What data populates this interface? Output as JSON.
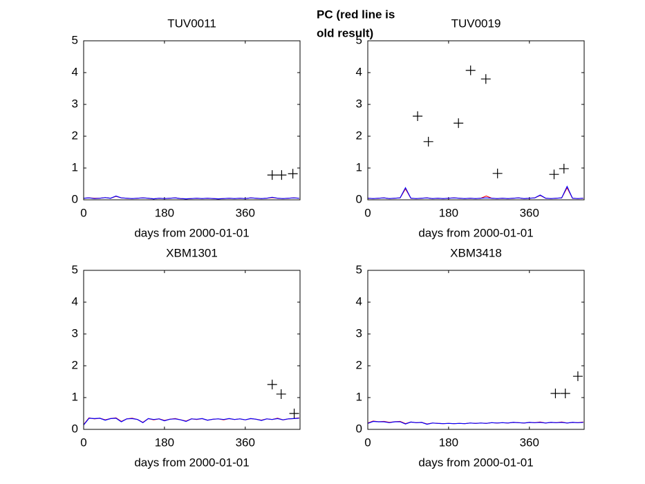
{
  "figure_annotation": [
    "PC (red line is",
    "old result)"
  ],
  "annotation_color": "#ff0000",
  "chart_data": [
    {
      "type": "line",
      "title": "TUV0011",
      "x_label": "days from 2000-01-01",
      "xlim": [
        0,
        482
      ],
      "xticks": [
        0,
        180,
        360
      ],
      "ylim": [
        0,
        5
      ],
      "yticks": [
        0,
        1,
        2,
        3,
        4,
        5
      ],
      "x": [
        0,
        12,
        24,
        36,
        48,
        60,
        72,
        84,
        96,
        108,
        120,
        132,
        144,
        156,
        168,
        180,
        192,
        204,
        216,
        228,
        240,
        252,
        264,
        276,
        288,
        300,
        312,
        324,
        336,
        348,
        360,
        372,
        384,
        396,
        408,
        420,
        432,
        444,
        456,
        468,
        480
      ],
      "series": [
        {
          "style": "line",
          "color": "#ff0000",
          "values": [
            0.05,
            0.06,
            0.05,
            0.05,
            0.07,
            0.05,
            0.11,
            0.06,
            0.05,
            0.04,
            0.05,
            0.06,
            0.05,
            0.03,
            0.05,
            0.04,
            0.05,
            0.06,
            0.04,
            0.03,
            0.04,
            0.05,
            0.04,
            0.05,
            0.04,
            0.03,
            0.04,
            0.05,
            0.04,
            0.05,
            0.04,
            0.06,
            0.05,
            0.04,
            0.05,
            0.07,
            0.05,
            0.04,
            0.05,
            0.06,
            0.05
          ]
        },
        {
          "style": "line",
          "color": "#0000ff",
          "values": [
            0.05,
            0.06,
            0.04,
            0.05,
            0.07,
            0.05,
            0.12,
            0.06,
            0.05,
            0.04,
            0.05,
            0.06,
            0.05,
            0.03,
            0.05,
            0.04,
            0.05,
            0.06,
            0.04,
            0.03,
            0.04,
            0.05,
            0.04,
            0.05,
            0.04,
            0.03,
            0.04,
            0.05,
            0.04,
            0.05,
            0.04,
            0.06,
            0.05,
            0.04,
            0.05,
            0.08,
            0.05,
            0.04,
            0.05,
            0.06,
            0.05
          ]
        },
        {
          "style": "plus",
          "color": "#000000",
          "x": [
            420,
            441,
            466
          ],
          "values": [
            0.78,
            0.78,
            0.82
          ]
        }
      ]
    },
    {
      "type": "line",
      "title": "TUV0019",
      "x_label": "days from 2000-01-01",
      "xlim": [
        0,
        482
      ],
      "xticks": [
        0,
        180,
        360
      ],
      "ylim": [
        0,
        5
      ],
      "yticks": [
        0,
        1,
        2,
        3,
        4,
        5
      ],
      "x": [
        0,
        12,
        24,
        36,
        48,
        60,
        72,
        84,
        96,
        108,
        120,
        132,
        144,
        156,
        168,
        180,
        192,
        204,
        216,
        228,
        240,
        252,
        264,
        276,
        288,
        300,
        312,
        324,
        336,
        348,
        360,
        372,
        384,
        396,
        408,
        420,
        432,
        444,
        456,
        468,
        480
      ],
      "series": [
        {
          "style": "line",
          "color": "#ff0000",
          "values": [
            0.05,
            0.04,
            0.05,
            0.06,
            0.04,
            0.05,
            0.06,
            0.35,
            0.05,
            0.04,
            0.05,
            0.06,
            0.04,
            0.05,
            0.04,
            0.05,
            0.06,
            0.05,
            0.04,
            0.05,
            0.04,
            0.05,
            0.12,
            0.05,
            0.04,
            0.05,
            0.04,
            0.05,
            0.06,
            0.04,
            0.05,
            0.06,
            0.14,
            0.05,
            0.04,
            0.05,
            0.06,
            0.38,
            0.05,
            0.04,
            0.05
          ]
        },
        {
          "style": "line",
          "color": "#0000ff",
          "values": [
            0.05,
            0.04,
            0.05,
            0.06,
            0.04,
            0.05,
            0.06,
            0.38,
            0.05,
            0.04,
            0.05,
            0.06,
            0.04,
            0.05,
            0.04,
            0.05,
            0.06,
            0.05,
            0.04,
            0.05,
            0.04,
            0.05,
            0.06,
            0.05,
            0.04,
            0.05,
            0.04,
            0.05,
            0.06,
            0.04,
            0.05,
            0.06,
            0.15,
            0.05,
            0.04,
            0.05,
            0.06,
            0.42,
            0.05,
            0.04,
            0.05
          ]
        },
        {
          "style": "plus",
          "color": "#000000",
          "x": [
            111,
            135,
            202,
            229,
            263,
            289,
            415,
            437
          ],
          "values": [
            2.63,
            1.83,
            2.41,
            4.07,
            3.8,
            0.83,
            0.8,
            0.98
          ]
        }
      ]
    },
    {
      "type": "line",
      "title": "XBM1301",
      "x_label": "days from 2000-01-01",
      "xlim": [
        0,
        482
      ],
      "xticks": [
        0,
        180,
        360
      ],
      "ylim": [
        0,
        5
      ],
      "yticks": [
        0,
        1,
        2,
        3,
        4,
        5
      ],
      "x": [
        0,
        12,
        24,
        36,
        48,
        60,
        72,
        84,
        96,
        108,
        120,
        132,
        144,
        156,
        168,
        180,
        192,
        204,
        216,
        228,
        240,
        252,
        264,
        276,
        288,
        300,
        312,
        324,
        336,
        348,
        360,
        372,
        384,
        396,
        408,
        420,
        432,
        444,
        456,
        468,
        480
      ],
      "series": [
        {
          "style": "line",
          "color": "#ff0000",
          "values": [
            0.15,
            0.36,
            0.33,
            0.35,
            0.3,
            0.34,
            0.36,
            0.25,
            0.33,
            0.35,
            0.31,
            0.22,
            0.34,
            0.3,
            0.33,
            0.28,
            0.32,
            0.34,
            0.3,
            0.26,
            0.33,
            0.31,
            0.34,
            0.29,
            0.32,
            0.33,
            0.3,
            0.34,
            0.31,
            0.33,
            0.3,
            0.34,
            0.32,
            0.29,
            0.33,
            0.31,
            0.35,
            0.3,
            0.33,
            0.34,
            0.36
          ]
        },
        {
          "style": "line",
          "color": "#0000ff",
          "values": [
            0.14,
            0.35,
            0.34,
            0.35,
            0.29,
            0.34,
            0.35,
            0.24,
            0.33,
            0.34,
            0.31,
            0.21,
            0.34,
            0.31,
            0.33,
            0.27,
            0.32,
            0.33,
            0.3,
            0.25,
            0.33,
            0.32,
            0.34,
            0.29,
            0.32,
            0.33,
            0.31,
            0.34,
            0.31,
            0.33,
            0.3,
            0.34,
            0.32,
            0.28,
            0.33,
            0.31,
            0.34,
            0.3,
            0.33,
            0.34,
            0.35
          ]
        },
        {
          "style": "plus",
          "color": "#000000",
          "x": [
            420,
            440,
            469
          ],
          "values": [
            1.41,
            1.11,
            0.5
          ]
        }
      ]
    },
    {
      "type": "line",
      "title": "XBM3418",
      "x_label": "days from 2000-01-01",
      "xlim": [
        0,
        482
      ],
      "xticks": [
        0,
        180,
        360
      ],
      "ylim": [
        0,
        5
      ],
      "yticks": [
        0,
        1,
        2,
        3,
        4,
        5
      ],
      "x": [
        0,
        12,
        24,
        36,
        48,
        60,
        72,
        84,
        96,
        108,
        120,
        132,
        144,
        156,
        168,
        180,
        192,
        204,
        216,
        228,
        240,
        252,
        264,
        276,
        288,
        300,
        312,
        324,
        336,
        348,
        360,
        372,
        384,
        396,
        408,
        420,
        432,
        444,
        456,
        468,
        480
      ],
      "series": [
        {
          "style": "line",
          "color": "#ff0000",
          "values": [
            0.2,
            0.26,
            0.24,
            0.25,
            0.22,
            0.24,
            0.25,
            0.18,
            0.23,
            0.21,
            0.22,
            0.17,
            0.2,
            0.19,
            0.18,
            0.19,
            0.18,
            0.19,
            0.18,
            0.2,
            0.19,
            0.2,
            0.19,
            0.21,
            0.2,
            0.21,
            0.2,
            0.22,
            0.21,
            0.2,
            0.22,
            0.21,
            0.23,
            0.2,
            0.22,
            0.21,
            0.23,
            0.2,
            0.22,
            0.21,
            0.23
          ]
        },
        {
          "style": "line",
          "color": "#0000ff",
          "values": [
            0.19,
            0.25,
            0.24,
            0.24,
            0.21,
            0.24,
            0.24,
            0.17,
            0.23,
            0.21,
            0.22,
            0.16,
            0.2,
            0.19,
            0.18,
            0.19,
            0.18,
            0.19,
            0.18,
            0.2,
            0.19,
            0.2,
            0.19,
            0.21,
            0.2,
            0.21,
            0.2,
            0.22,
            0.21,
            0.2,
            0.22,
            0.21,
            0.22,
            0.2,
            0.22,
            0.21,
            0.22,
            0.2,
            0.22,
            0.21,
            0.22
          ]
        },
        {
          "style": "plus",
          "color": "#000000",
          "x": [
            418,
            440,
            468
          ],
          "values": [
            1.13,
            1.13,
            1.67
          ]
        }
      ]
    }
  ]
}
